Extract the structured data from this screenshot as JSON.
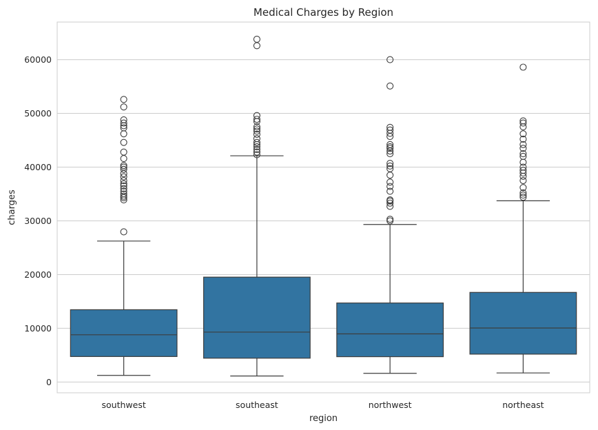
{
  "chart_data": {
    "type": "box",
    "title": "Medical Charges by Region",
    "xlabel": "region",
    "ylabel": "charges",
    "ylim": [
      -2000,
      67000
    ],
    "yticks": [
      0,
      10000,
      20000,
      30000,
      40000,
      50000,
      60000
    ],
    "grid": true,
    "box_color": "#3274a1",
    "line_color": "#3d3d3d",
    "categories": [
      "southwest",
      "southeast",
      "northwest",
      "northeast"
    ],
    "boxes": [
      {
        "category": "southwest",
        "whisker_low": 1242,
        "q1": 4751,
        "median": 8799,
        "q3": 13463,
        "whisker_high": 26237,
        "outliers": [
          27950,
          33900,
          34300,
          34600,
          35000,
          35500,
          36000,
          36500,
          36900,
          37500,
          38200,
          38800,
          39600,
          40000,
          40300,
          41600,
          42800,
          44600,
          46200,
          47300,
          47700,
          48200,
          48800,
          51200,
          52600
        ]
      },
      {
        "category": "southeast",
        "whisker_low": 1122,
        "q1": 4441,
        "median": 9294,
        "q3": 19526,
        "whisker_high": 42112,
        "outliers": [
          42300,
          42800,
          43300,
          43800,
          44200,
          44600,
          45300,
          46100,
          46700,
          47100,
          47500,
          48500,
          48900,
          49600,
          62600,
          63800
        ]
      },
      {
        "category": "northwest",
        "whisker_low": 1621,
        "q1": 4720,
        "median": 8966,
        "q3": 14712,
        "whisker_high": 29330,
        "outliers": [
          30000,
          30300,
          32700,
          33300,
          33700,
          33900,
          35500,
          36400,
          37200,
          38500,
          39700,
          40200,
          40700,
          42500,
          43000,
          43500,
          43800,
          44200,
          45700,
          46300,
          46900,
          47400,
          55100,
          60000
        ]
      },
      {
        "category": "northeast",
        "whisker_low": 1695,
        "q1": 5194,
        "median": 10058,
        "q3": 16687,
        "whisker_high": 33732,
        "outliers": [
          34400,
          34800,
          35200,
          36200,
          37500,
          38300,
          38900,
          39400,
          40000,
          40900,
          42000,
          42500,
          43500,
          44200,
          45200,
          46200,
          47500,
          48200,
          48600,
          58600
        ]
      }
    ]
  }
}
